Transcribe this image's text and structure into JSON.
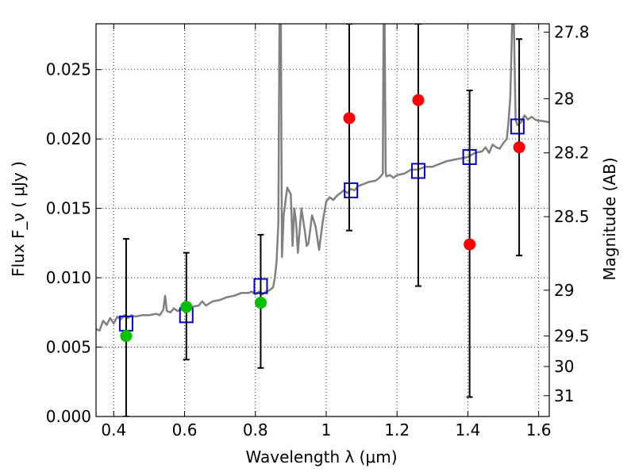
{
  "chart_data": {
    "type": "scatter",
    "xlabel": "Wavelength  λ (μm)",
    "ylabel": "Flux  F_ν  ( μJy )",
    "y2label": "Magnitude (AB)",
    "xlim": [
      0.35,
      1.63
    ],
    "ylim": [
      0.0,
      0.0283
    ],
    "grid": true,
    "x_ticks": [
      0.4,
      0.6,
      0.8,
      1.0,
      1.2,
      1.4,
      1.6
    ],
    "x_tick_labels": [
      "0.4",
      "0.6",
      "0.8",
      "1",
      "1.2",
      "1.4",
      "1.6"
    ],
    "y_ticks": [
      0.0,
      0.005,
      0.01,
      0.015,
      0.02,
      0.025
    ],
    "y_tick_labels": [
      "0.000",
      "0.005",
      "0.010",
      "0.015",
      "0.020",
      "0.025"
    ],
    "y2_ticks": [
      {
        "label": "27.8",
        "flux": 0.0277
      },
      {
        "label": "28",
        "flux": 0.0229
      },
      {
        "label": "28.2",
        "flux": 0.019
      },
      {
        "label": "28.5",
        "flux": 0.0144
      },
      {
        "label": "29",
        "flux": 0.0091
      },
      {
        "label": "29.5",
        "flux": 0.0058
      },
      {
        "label": "30",
        "flux": 0.0036
      },
      {
        "label": "31",
        "flux": 0.0015
      }
    ],
    "series": [
      {
        "style": "line",
        "color": "#808080",
        "points": [
          [
            0.35,
            0.0063
          ],
          [
            0.36,
            0.0062
          ],
          [
            0.37,
            0.0069
          ],
          [
            0.38,
            0.0066
          ],
          [
            0.39,
            0.0071
          ],
          [
            0.4,
            0.0067
          ],
          [
            0.41,
            0.0072
          ],
          [
            0.42,
            0.007
          ],
          [
            0.43,
            0.0073
          ],
          [
            0.44,
            0.0071
          ],
          [
            0.45,
            0.0073
          ],
          [
            0.46,
            0.0072
          ],
          [
            0.48,
            0.0073
          ],
          [
            0.5,
            0.0073
          ],
          [
            0.52,
            0.0074
          ],
          [
            0.53,
            0.0073
          ],
          [
            0.54,
            0.0077
          ],
          [
            0.545,
            0.0087
          ],
          [
            0.55,
            0.0076
          ],
          [
            0.56,
            0.0075
          ],
          [
            0.57,
            0.0078
          ],
          [
            0.58,
            0.0076
          ],
          [
            0.6,
            0.0078
          ],
          [
            0.62,
            0.0079
          ],
          [
            0.64,
            0.008
          ],
          [
            0.65,
            0.0083
          ],
          [
            0.66,
            0.008
          ],
          [
            0.68,
            0.0083
          ],
          [
            0.7,
            0.0084
          ],
          [
            0.72,
            0.0086
          ],
          [
            0.74,
            0.0087
          ],
          [
            0.76,
            0.0089
          ],
          [
            0.78,
            0.0089
          ],
          [
            0.79,
            0.009
          ],
          [
            0.8,
            0.0088
          ],
          [
            0.81,
            0.009
          ],
          [
            0.82,
            0.0088
          ],
          [
            0.83,
            0.009
          ],
          [
            0.84,
            0.0091
          ],
          [
            0.85,
            0.0093
          ],
          [
            0.855,
            0.01
          ],
          [
            0.86,
            0.0112
          ],
          [
            0.865,
            0.014
          ],
          [
            0.868,
            0.0283
          ],
          [
            0.872,
            0.0283
          ],
          [
            0.875,
            0.0115
          ],
          [
            0.88,
            0.0145
          ],
          [
            0.89,
            0.0165
          ],
          [
            0.9,
            0.016
          ],
          [
            0.905,
            0.0123
          ],
          [
            0.91,
            0.015
          ],
          [
            0.915,
            0.014
          ],
          [
            0.92,
            0.0118
          ],
          [
            0.93,
            0.015
          ],
          [
            0.94,
            0.0133
          ],
          [
            0.945,
            0.0123
          ],
          [
            0.95,
            0.0125
          ],
          [
            0.96,
            0.0145
          ],
          [
            0.97,
            0.0137
          ],
          [
            0.98,
            0.012
          ],
          [
            0.99,
            0.014
          ],
          [
            1.0,
            0.0155
          ],
          [
            1.01,
            0.0158
          ],
          [
            1.02,
            0.0156
          ],
          [
            1.03,
            0.0159
          ],
          [
            1.04,
            0.0161
          ],
          [
            1.05,
            0.0163
          ],
          [
            1.06,
            0.0161
          ],
          [
            1.07,
            0.0164
          ],
          [
            1.08,
            0.0163
          ],
          [
            1.09,
            0.0166
          ],
          [
            1.1,
            0.0167
          ],
          [
            1.12,
            0.0169
          ],
          [
            1.14,
            0.017
          ],
          [
            1.15,
            0.0172
          ],
          [
            1.16,
            0.0175
          ],
          [
            1.162,
            0.0283
          ],
          [
            1.165,
            0.0283
          ],
          [
            1.168,
            0.0176
          ],
          [
            1.17,
            0.0173
          ],
          [
            1.18,
            0.0174
          ],
          [
            1.19,
            0.0172
          ],
          [
            1.2,
            0.0174
          ],
          [
            1.22,
            0.0175
          ],
          [
            1.24,
            0.0178
          ],
          [
            1.26,
            0.0178
          ],
          [
            1.28,
            0.018
          ],
          [
            1.3,
            0.018
          ],
          [
            1.32,
            0.0182
          ],
          [
            1.34,
            0.0184
          ],
          [
            1.36,
            0.0185
          ],
          [
            1.38,
            0.0186
          ],
          [
            1.4,
            0.0187
          ],
          [
            1.42,
            0.019
          ],
          [
            1.44,
            0.0191
          ],
          [
            1.45,
            0.0194
          ],
          [
            1.46,
            0.019
          ],
          [
            1.47,
            0.0196
          ],
          [
            1.48,
            0.0194
          ],
          [
            1.49,
            0.0193
          ],
          [
            1.5,
            0.0197
          ],
          [
            1.51,
            0.02
          ],
          [
            1.515,
            0.0213
          ],
          [
            1.52,
            0.023
          ],
          [
            1.525,
            0.0283
          ],
          [
            1.53,
            0.0283
          ],
          [
            1.535,
            0.0214
          ],
          [
            1.54,
            0.021
          ],
          [
            1.55,
            0.0212
          ],
          [
            1.56,
            0.0217
          ],
          [
            1.57,
            0.0214
          ],
          [
            1.58,
            0.0216
          ],
          [
            1.59,
            0.0214
          ],
          [
            1.6,
            0.0213
          ],
          [
            1.61,
            0.0213
          ],
          [
            1.63,
            0.0212
          ]
        ]
      },
      {
        "style": "open-square",
        "color": "#0000cc",
        "points": [
          [
            0.435,
            0.0067
          ],
          [
            0.605,
            0.0073
          ],
          [
            0.815,
            0.0094
          ],
          [
            1.07,
            0.0163
          ],
          [
            1.26,
            0.0177
          ],
          [
            1.405,
            0.0187
          ],
          [
            1.54,
            0.0209
          ]
        ]
      },
      {
        "style": "errorbar",
        "color": "#000000",
        "bars": [
          {
            "x": 0.435,
            "low": 0.0,
            "high": 0.0128
          },
          {
            "x": 0.605,
            "low": 0.0041,
            "high": 0.0118
          },
          {
            "x": 0.815,
            "low": 0.0035,
            "high": 0.0131
          },
          {
            "x": 1.065,
            "low": 0.0134,
            "high": 0.0283
          },
          {
            "x": 1.26,
            "low": 0.0094,
            "high": 0.0283
          },
          {
            "x": 1.405,
            "low": 0.0014,
            "high": 0.0235
          },
          {
            "x": 1.545,
            "low": 0.0116,
            "high": 0.0272
          }
        ]
      },
      {
        "style": "filled-circle",
        "color": "#00c000",
        "points": [
          [
            0.435,
            0.0058
          ],
          [
            0.605,
            0.0079
          ],
          [
            0.815,
            0.0082
          ]
        ]
      },
      {
        "style": "filled-circle",
        "color": "#ff0000",
        "points": [
          [
            1.065,
            0.0215
          ],
          [
            1.26,
            0.0228
          ],
          [
            1.405,
            0.0124
          ],
          [
            1.545,
            0.0194
          ]
        ]
      }
    ]
  }
}
